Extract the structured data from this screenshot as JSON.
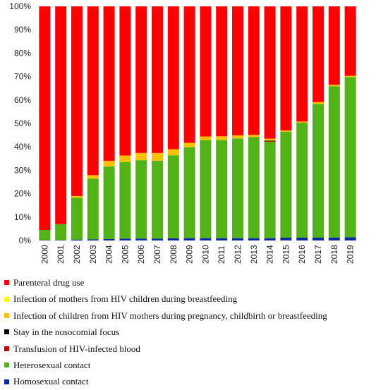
{
  "chart_data": {
    "type": "bar",
    "stacked": true,
    "percent": true,
    "categories": [
      "2000",
      "2001",
      "2002",
      "2003",
      "2004",
      "2005",
      "2006",
      "2007",
      "2008",
      "2009",
      "2010",
      "2011",
      "2012",
      "2013",
      "2014",
      "2015",
      "2016",
      "2017",
      "2018",
      "2019"
    ],
    "ylim": [
      0,
      100
    ],
    "yticks": [
      "0%",
      "10%",
      "20%",
      "30%",
      "40%",
      "50%",
      "60%",
      "70%",
      "80%",
      "90%",
      "100%"
    ],
    "grid": false,
    "legend_position": "bottom",
    "series": [
      {
        "name": "Homosexual contact",
        "color": "#0a2aa8",
        "values": [
          0.2,
          0.2,
          0.4,
          0.5,
          0.6,
          0.8,
          0.8,
          0.8,
          0.9,
          1.0,
          1.0,
          1.0,
          1.0,
          1.0,
          1.0,
          1.2,
          1.2,
          1.2,
          1.2,
          1.4
        ]
      },
      {
        "name": "Heterosexual contact",
        "color": "#52b217",
        "values": [
          4.3,
          6.8,
          17.9,
          25.9,
          31.0,
          32.7,
          33.5,
          33.3,
          35.5,
          38.8,
          41.9,
          41.9,
          42.6,
          43.2,
          41.2,
          45.3,
          49.1,
          57.1,
          64.7,
          68.4
        ]
      },
      {
        "name": "Transfusion of HIV-infected blood",
        "color": "#c00000",
        "values": [
          0,
          0,
          0,
          0,
          0,
          0,
          0,
          0,
          0,
          0,
          0,
          0,
          0,
          0,
          0.3,
          0,
          0,
          0,
          0,
          0
        ]
      },
      {
        "name": "Stay in the nosocomial focus",
        "color": "#000000",
        "values": [
          0,
          0,
          0,
          0,
          0,
          0,
          0,
          0,
          0,
          0,
          0,
          0,
          0,
          0,
          0.2,
          0,
          0,
          0,
          0,
          0
        ]
      },
      {
        "name": "Infection of children from HIV mothers during pregnancy, childbirth or breastfeeding",
        "color": "#ffc000",
        "values": [
          0,
          0,
          0.7,
          1.5,
          2.4,
          2.8,
          3.1,
          3.3,
          2.6,
          1.9,
          1.5,
          1.6,
          1.3,
          0.9,
          0.8,
          0.5,
          0.5,
          0.8,
          0.6,
          0.5
        ]
      },
      {
        "name": "Infection of mothers from HIV children during breastfeeding",
        "color": "#ffff00",
        "values": [
          0,
          0,
          0,
          0,
          0,
          0,
          0,
          0,
          0,
          0,
          0,
          0,
          0,
          0,
          0,
          0,
          0,
          0,
          0,
          0
        ]
      },
      {
        "name": "Parenteral drug use",
        "color": "#ff0000",
        "values": [
          95.5,
          93.0,
          81.0,
          72.1,
          66.0,
          63.7,
          62.6,
          62.6,
          61.0,
          58.3,
          55.6,
          55.5,
          55.1,
          54.9,
          56.5,
          53.0,
          49.2,
          40.9,
          33.5,
          29.7
        ]
      }
    ],
    "legend_order": [
      "Parenteral drug use",
      "Infection of mothers from HIV children during breastfeeding",
      "Infection of children from HIV mothers during pregnancy, childbirth or breastfeeding",
      "Stay in the nosocomial focus",
      "Transfusion of HIV-infected blood",
      "Heterosexual contact",
      "Homosexual contact"
    ]
  }
}
